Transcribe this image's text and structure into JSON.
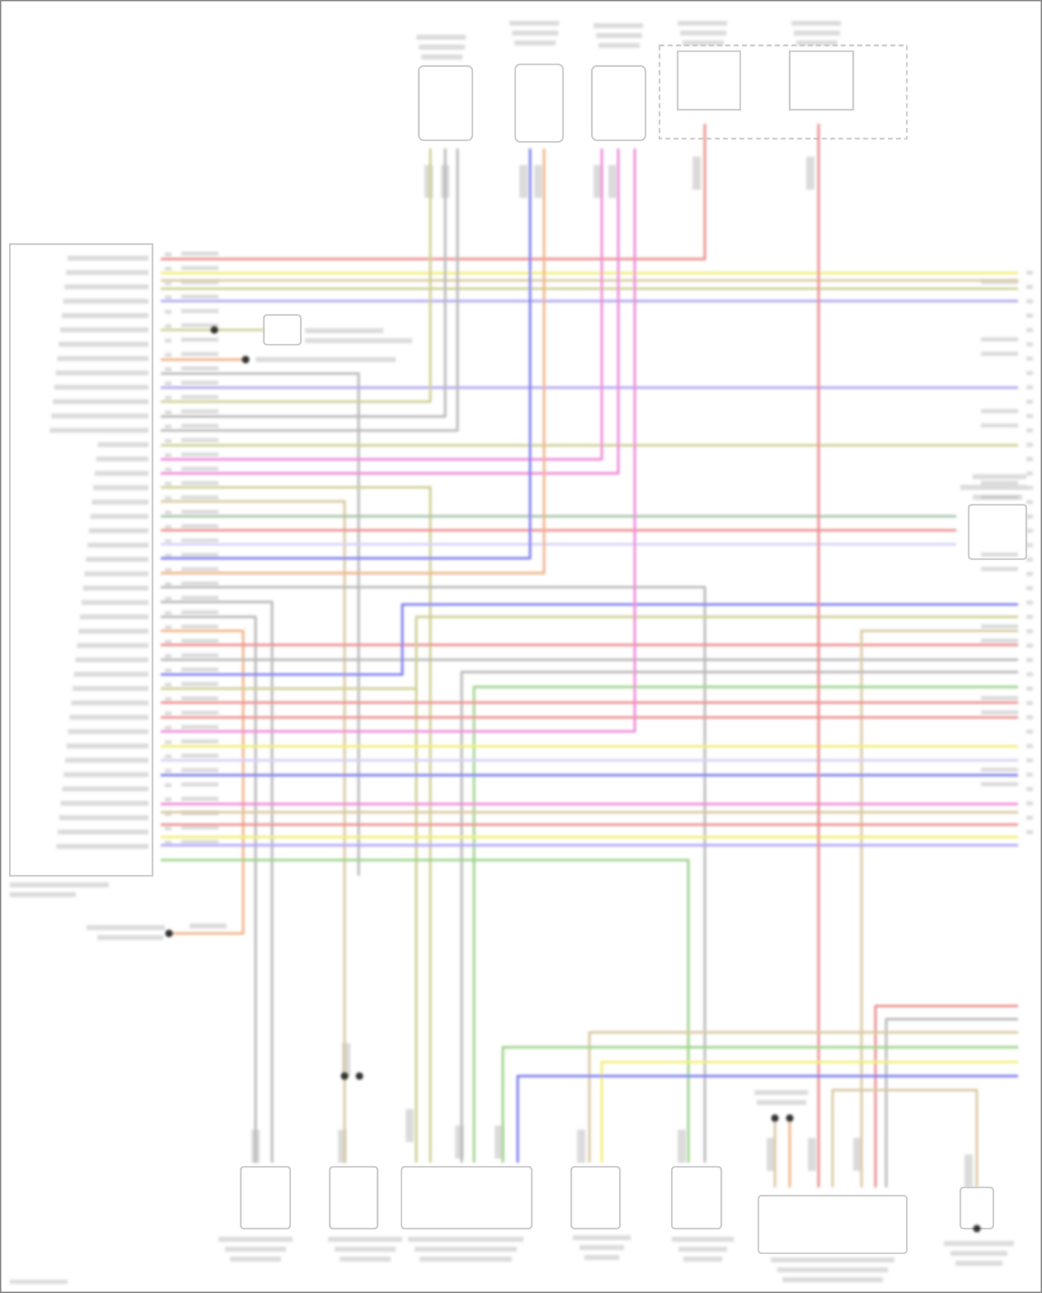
{
  "diagram": {
    "type": "wiring-diagram",
    "text_legible": false,
    "wire_colors": {
      "red": "#ec8f8f",
      "yellow": "#f2ee78",
      "olive": "#cfcf95",
      "tan": "#d9c9a2",
      "green": "#9fd48c",
      "greengray": "#a8c4ac",
      "violet": "#b2a8f2",
      "blue": "#7f7ff0",
      "pink": "#f08ad8",
      "orange": "#f2b488",
      "gray": "#b9b9b9",
      "lightviolet": "#d6d0f7"
    },
    "component_outline_color": "#c8c8c8",
    "relay_box_style": "dashed",
    "splice_dot_color": "#333333"
  }
}
